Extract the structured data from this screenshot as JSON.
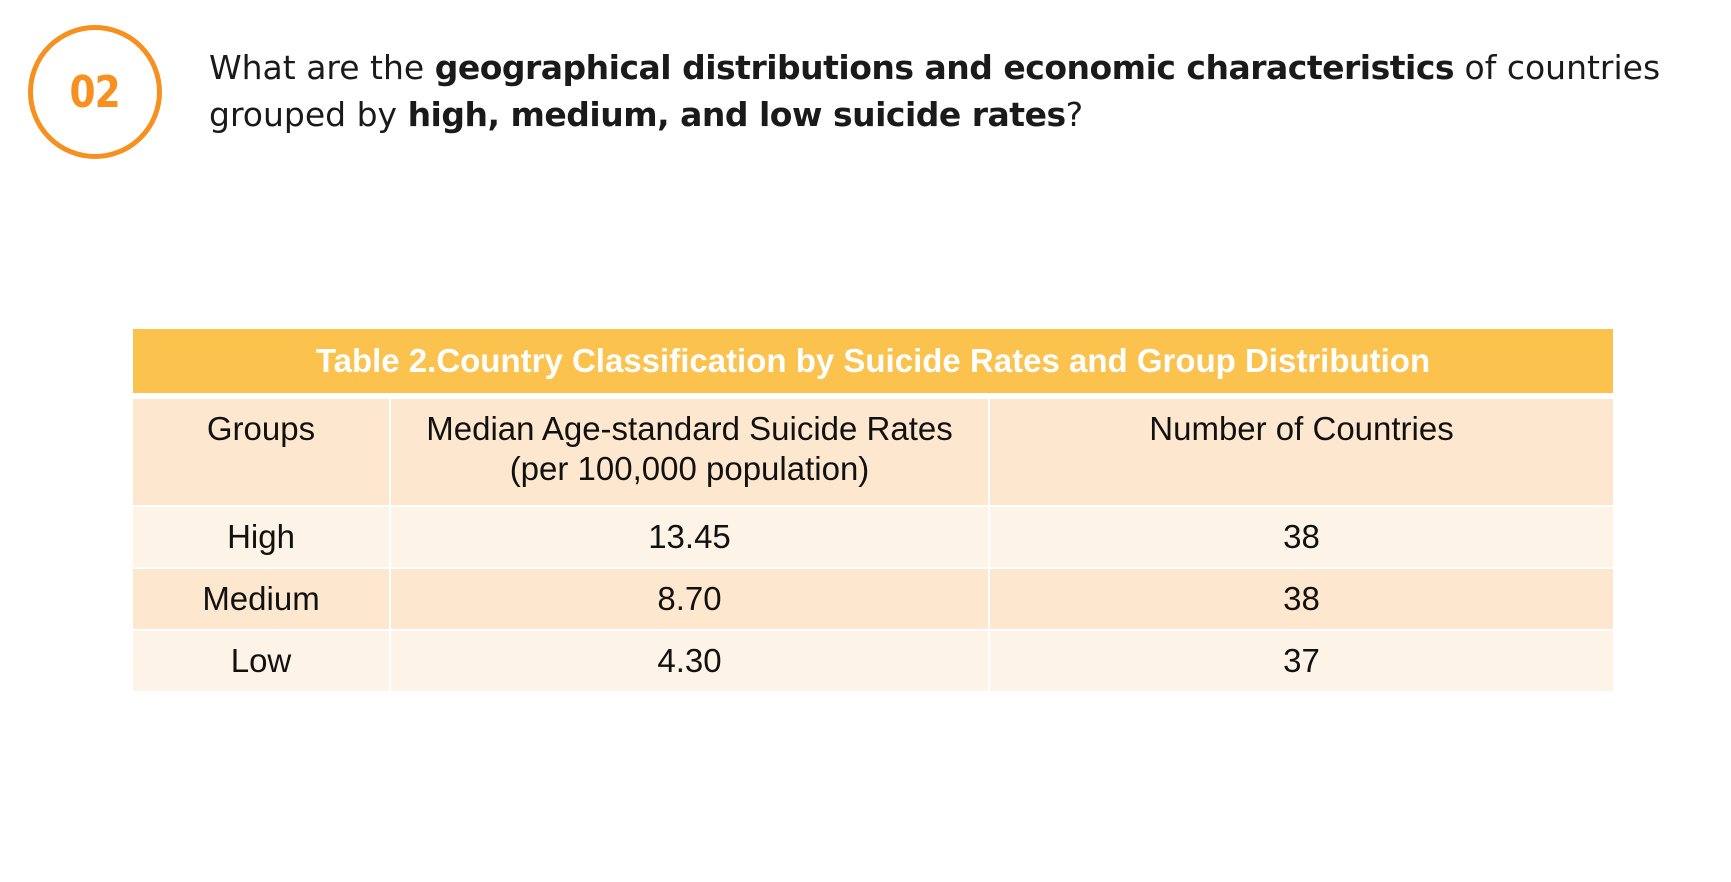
{
  "badge": {
    "number": "02"
  },
  "question": {
    "part1": "What are the ",
    "bold1": "geographical distributions and economic characteristics",
    "part2": " of countries grouped by ",
    "bold2": "high, medium, and low suicide rates",
    "part3": "?"
  },
  "table": {
    "caption": "Table 2.Country Classification by Suicide Rates and Group Distribution",
    "headers": {
      "groups": "Groups",
      "median_line1": "Median Age-standard Suicide Rates",
      "median_line2": "(per 100,000 population)",
      "count": "Number of Countries"
    },
    "rows": [
      {
        "group": "High",
        "median": "13.45",
        "count": "38"
      },
      {
        "group": "Medium",
        "median": "8.70",
        "count": "38"
      },
      {
        "group": "Low",
        "median": "4.30",
        "count": "37"
      }
    ]
  },
  "colors": {
    "accent_orange": "#f7901e",
    "caption_bg": "#fcc24e",
    "row_dark": "#fde8cf",
    "row_light": "#fdf3e6"
  }
}
